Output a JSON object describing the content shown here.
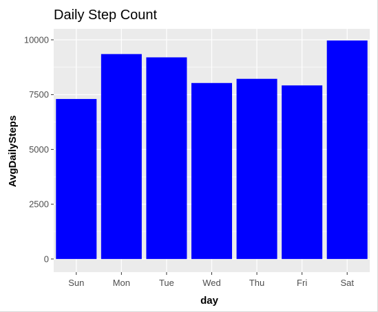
{
  "chart_data": {
    "type": "bar",
    "title": "Daily Step Count",
    "xlabel": "day",
    "ylabel": "AvgDailySteps",
    "categories": [
      "Sun",
      "Mon",
      "Tue",
      "Wed",
      "Thu",
      "Fri",
      "Sat"
    ],
    "values": [
      7300,
      9350,
      9200,
      8030,
      8220,
      7920,
      9970
    ],
    "ylim": [
      -600,
      10500
    ],
    "yticks": [
      0,
      2500,
      5000,
      7500,
      10000
    ],
    "ytick_labels": [
      "0",
      "2500",
      "5000",
      "7500",
      "10000"
    ],
    "bar_color": "#0000ff",
    "panel_background": "#ebebeb",
    "grid_color": "#ffffff",
    "grid": true,
    "legend": "none"
  }
}
